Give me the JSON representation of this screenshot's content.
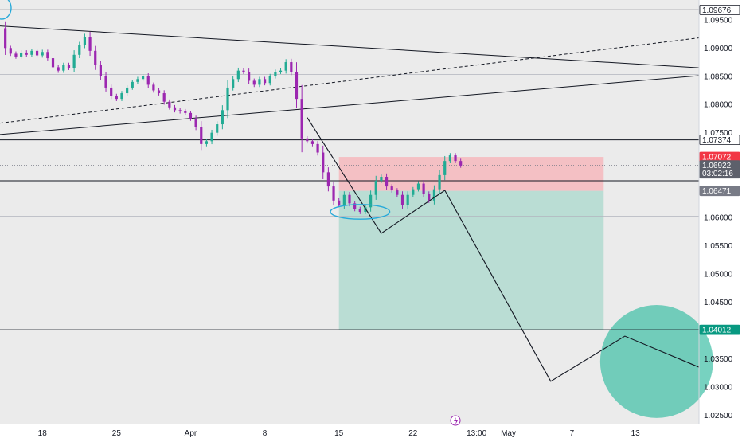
{
  "chart_data": {
    "type": "candlestick",
    "title": "",
    "ylim": [
      1.0235,
      1.0985
    ],
    "xlim": [
      "2024-03-14",
      "2024-05-19"
    ],
    "y_ticks": [
      1.025,
      1.03,
      1.035,
      1.04,
      1.045,
      1.05,
      1.055,
      1.06,
      1.065,
      1.07,
      1.075,
      1.08,
      1.085,
      1.09,
      1.095
    ],
    "y_tick_labels": [
      "1.02500",
      "1.03000",
      "1.03500",
      "1.04000",
      "1.04500",
      "1.05000",
      "1.05500",
      "1.06000",
      "1.06500",
      "1.07000",
      "1.07500",
      "1.08000",
      "1.08500",
      "1.09000",
      "1.09500"
    ],
    "x_ticks": [
      {
        "date": "2024-03-18",
        "label": "18"
      },
      {
        "date": "2024-03-25",
        "label": "25"
      },
      {
        "date": "2024-04-01",
        "label": "Apr"
      },
      {
        "date": "2024-04-08",
        "label": "8"
      },
      {
        "date": "2024-04-15",
        "label": "15"
      },
      {
        "date": "2024-04-22",
        "label": "22"
      },
      {
        "date": "2024-04-28",
        "label": "13:00"
      },
      {
        "date": "2024-05-01",
        "label": "May"
      },
      {
        "date": "2024-05-07",
        "label": "7"
      },
      {
        "date": "2024-05-13",
        "label": "13"
      }
    ],
    "up_color": "#22ab94",
    "down_color": "#9c27b0",
    "price_path": [
      [
        "2024-03-14T00:00",
        1.0935
      ],
      [
        "2024-03-14T12:00",
        1.09
      ],
      [
        "2024-03-15T00:00",
        1.089
      ],
      [
        "2024-03-15T12:00",
        1.0885
      ],
      [
        "2024-03-16T00:00",
        1.0892
      ],
      [
        "2024-03-16T12:00",
        1.0888
      ],
      [
        "2024-03-17T00:00",
        1.0895
      ],
      [
        "2024-03-17T12:00",
        1.0887
      ],
      [
        "2024-03-18T00:00",
        1.0893
      ],
      [
        "2024-03-18T12:00",
        1.0882
      ],
      [
        "2024-03-19T00:00",
        1.0866
      ],
      [
        "2024-03-19T12:00",
        1.086
      ],
      [
        "2024-03-20T00:00",
        1.087
      ],
      [
        "2024-03-20T12:00",
        1.0865
      ],
      [
        "2024-03-21T00:00",
        1.0888
      ],
      [
        "2024-03-21T12:00",
        1.0905
      ],
      [
        "2024-03-22T00:00",
        1.092
      ],
      [
        "2024-03-22T12:00",
        1.0895
      ],
      [
        "2024-03-23T00:00",
        1.087
      ],
      [
        "2024-03-23T12:00",
        1.085
      ],
      [
        "2024-03-24T00:00",
        1.083
      ],
      [
        "2024-03-24T12:00",
        1.0815
      ],
      [
        "2024-03-25T00:00",
        1.081
      ],
      [
        "2024-03-25T12:00",
        1.082
      ],
      [
        "2024-03-26T00:00",
        1.083
      ],
      [
        "2024-03-26T12:00",
        1.084
      ],
      [
        "2024-03-27T00:00",
        1.0845
      ],
      [
        "2024-03-27T12:00",
        1.085
      ],
      [
        "2024-03-28T00:00",
        1.0835
      ],
      [
        "2024-03-28T12:00",
        1.0825
      ],
      [
        "2024-03-29T00:00",
        1.082
      ],
      [
        "2024-03-29T12:00",
        1.0805
      ],
      [
        "2024-03-30T00:00",
        1.0795
      ],
      [
        "2024-03-30T12:00",
        1.079
      ],
      [
        "2024-03-31T00:00",
        1.0788
      ],
      [
        "2024-03-31T12:00",
        1.0785
      ],
      [
        "2024-04-01T00:00",
        1.0775
      ],
      [
        "2024-04-01T12:00",
        1.076
      ],
      [
        "2024-04-02T00:00",
        1.073
      ],
      [
        "2024-04-02T12:00",
        1.0735
      ],
      [
        "2024-04-03T00:00",
        1.075
      ],
      [
        "2024-04-03T12:00",
        1.0765
      ],
      [
        "2024-04-04T00:00",
        1.079
      ],
      [
        "2024-04-04T12:00",
        1.083
      ],
      [
        "2024-04-05T00:00",
        1.0845
      ],
      [
        "2024-04-05T12:00",
        1.086
      ],
      [
        "2024-04-06T00:00",
        1.0858
      ],
      [
        "2024-04-06T12:00",
        1.0842
      ],
      [
        "2024-04-07T00:00",
        1.0835
      ],
      [
        "2024-04-07T12:00",
        1.0845
      ],
      [
        "2024-04-08T00:00",
        1.0838
      ],
      [
        "2024-04-08T12:00",
        1.085
      ],
      [
        "2024-04-09T00:00",
        1.0858
      ],
      [
        "2024-04-09T12:00",
        1.086
      ],
      [
        "2024-04-10T00:00",
        1.0875
      ],
      [
        "2024-04-10T12:00",
        1.0858
      ],
      [
        "2024-04-11T00:00",
        1.081
      ],
      [
        "2024-04-11T12:00",
        1.074
      ],
      [
        "2024-04-12T00:00",
        1.0735
      ],
      [
        "2024-04-12T12:00",
        1.073
      ],
      [
        "2024-04-13T00:00",
        1.0715
      ],
      [
        "2024-04-13T12:00",
        1.068
      ],
      [
        "2024-04-14T00:00",
        1.0655
      ],
      [
        "2024-04-14T12:00",
        1.063
      ],
      [
        "2024-04-15T00:00",
        1.0622
      ],
      [
        "2024-04-15T12:00",
        1.064
      ],
      [
        "2024-04-16T00:00",
        1.0625
      ],
      [
        "2024-04-16T12:00",
        1.0615
      ],
      [
        "2024-04-17T00:00",
        1.061
      ],
      [
        "2024-04-17T12:00",
        1.0618
      ],
      [
        "2024-04-18T00:00",
        1.064
      ],
      [
        "2024-04-18T12:00",
        1.0665
      ],
      [
        "2024-04-19T00:00",
        1.0672
      ],
      [
        "2024-04-19T12:00",
        1.0655
      ],
      [
        "2024-04-20T00:00",
        1.0648
      ],
      [
        "2024-04-20T12:00",
        1.064
      ],
      [
        "2024-04-21T00:00",
        1.0622
      ],
      [
        "2024-04-21T12:00",
        1.064
      ],
      [
        "2024-04-22T00:00",
        1.065
      ],
      [
        "2024-04-22T12:00",
        1.066
      ],
      [
        "2024-04-23T00:00",
        1.0642
      ],
      [
        "2024-04-23T12:00",
        1.063
      ],
      [
        "2024-04-24T00:00",
        1.065
      ],
      [
        "2024-04-24T12:00",
        1.0675
      ],
      [
        "2024-04-25T00:00",
        1.07
      ],
      [
        "2024-04-25T12:00",
        1.071
      ],
      [
        "2024-04-26T00:00",
        1.07
      ],
      [
        "2024-04-26T12:00",
        1.0692
      ]
    ],
    "horizontal_lines": [
      {
        "y": 1.09676,
        "style": "solid"
      },
      {
        "y": 1.07374,
        "style": "solid"
      },
      {
        "y": 1.0665,
        "style": "solid"
      },
      {
        "y": 1.04012,
        "style": "solid"
      },
      {
        "y": 1.0853,
        "style": "solid",
        "color": "light"
      },
      {
        "y": 1.0602,
        "style": "solid",
        "color": "light"
      },
      {
        "y": 1.06922,
        "style": "dotted"
      }
    ],
    "trend_lines": [
      {
        "from": [
          "2024-03-14",
          1.0939
        ],
        "to": [
          "2024-05-19",
          1.0865
        ],
        "style": "solid"
      },
      {
        "from": [
          "2024-03-14",
          1.0747
        ],
        "to": [
          "2024-05-19",
          1.0851
        ],
        "style": "solid"
      },
      {
        "from": [
          "2024-03-14",
          1.0767
        ],
        "to": [
          "2024-05-19",
          1.0918
        ],
        "style": "dashed"
      }
    ],
    "projection_path": [
      [
        "2024-04-12",
        1.0777
      ],
      [
        "2024-04-19",
        1.0572
      ],
      [
        "2024-04-25",
        1.0648
      ],
      [
        "2024-05-05",
        1.031
      ],
      [
        "2024-05-12",
        1.039
      ],
      [
        "2024-05-19",
        1.0335
      ]
    ],
    "position": {
      "type": "short",
      "start": "2024-04-15",
      "end": "2024-05-10",
      "entry": 1.06471,
      "stop": 1.07072,
      "target": 1.04012
    },
    "ellipse_annotation": {
      "cx": "2024-04-17",
      "cy": 1.061,
      "rx_days": 2.8,
      "ry": 0.0013
    },
    "target_circle": {
      "cx": "2024-05-15",
      "cy": 1.0345,
      "r": 0.01
    },
    "price_badges": [
      {
        "value": 1.09676,
        "label": "1.09676",
        "bg": "#ffffff",
        "fg": "#131722",
        "border": "#131722"
      },
      {
        "value": 1.07374,
        "label": "1.07374",
        "bg": "#ffffff",
        "fg": "#131722",
        "border": "#131722"
      },
      {
        "value": 1.07072,
        "label": "1.07072",
        "bg": "#f23645",
        "fg": "#ffffff",
        "border": "#f23645"
      },
      {
        "value": 1.06922,
        "label": "1.06922",
        "sublabel": "03:02:16",
        "bg": "#5d606b",
        "fg": "#ffffff",
        "border": "#5d606b"
      },
      {
        "value": 1.06471,
        "label": "1.06471",
        "bg": "#787b86",
        "fg": "#ffffff",
        "border": "#787b86"
      },
      {
        "value": 1.04012,
        "label": "1.04012",
        "bg": "#089981",
        "fg": "#ffffff",
        "border": "#089981"
      }
    ]
  }
}
